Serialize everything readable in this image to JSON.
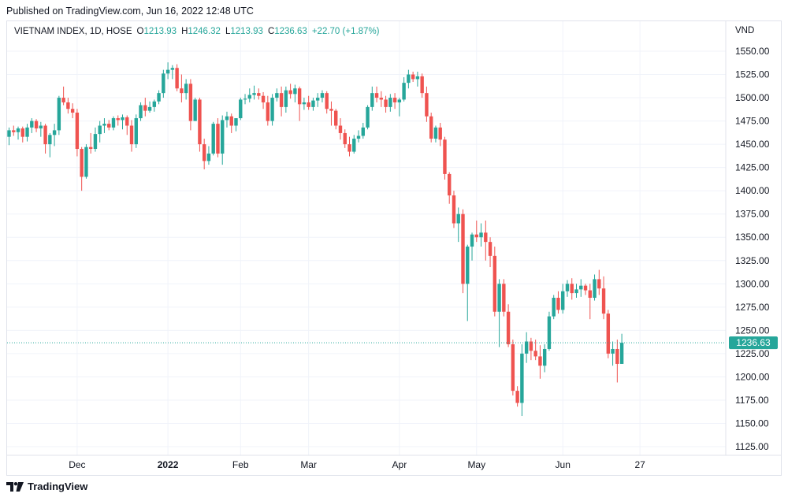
{
  "header": {
    "published": "Published on TradingView.com, Jun 16, 2022 12:48 UTC"
  },
  "legend": {
    "symbol": "VIETNAM INDEX, 1D, HOSE",
    "o_label": "O",
    "o_value": "1213.93",
    "h_label": "H",
    "h_value": "1246.32",
    "l_label": "L",
    "l_value": "1213.93",
    "c_label": "C",
    "c_value": "1236.63",
    "change": "+22.70 (+1.87%)"
  },
  "currency": "VND",
  "footer": {
    "logo_mark": "𝟭𝟳",
    "brand": "TradingView"
  },
  "colors": {
    "up": "#26a69a",
    "down": "#ef5350",
    "grid": "#f0f3fa",
    "price_line": "#26a69a"
  },
  "chart_data": {
    "type": "candlestick",
    "ylim": [
      1110,
      1575
    ],
    "y_ticks": [
      "1550.00",
      "1525.00",
      "1500.00",
      "1475.00",
      "1450.00",
      "1425.00",
      "1400.00",
      "1375.00",
      "1350.00",
      "1325.00",
      "1300.00",
      "1275.00",
      "1250.00",
      "1225.00",
      "1200.00",
      "1175.00",
      "1150.00",
      "1125.00"
    ],
    "x_labels": [
      {
        "label": "Dec",
        "bar": 15,
        "bold": false
      },
      {
        "label": "2022",
        "bar": 35,
        "bold": true
      },
      {
        "label": "Feb",
        "bar": 51,
        "bold": false
      },
      {
        "label": "Mar",
        "bar": 66,
        "bold": false
      },
      {
        "label": "Apr",
        "bar": 86,
        "bold": false
      },
      {
        "label": "May",
        "bar": 103,
        "bold": false
      },
      {
        "label": "Jun",
        "bar": 122,
        "bold": false
      },
      {
        "label": "27",
        "bar": 139,
        "bold": false
      }
    ],
    "last_price": 1236.63,
    "last_price_label": "1236.63",
    "candles": [
      [
        1458,
        1468,
        1449,
        1465
      ],
      [
        1465,
        1470,
        1459,
        1463
      ],
      [
        1463,
        1469,
        1455,
        1467
      ],
      [
        1467,
        1469,
        1452,
        1458
      ],
      [
        1458,
        1472,
        1453,
        1468
      ],
      [
        1468,
        1478,
        1462,
        1475
      ],
      [
        1475,
        1477,
        1463,
        1467
      ],
      [
        1467,
        1474,
        1458,
        1470
      ],
      [
        1470,
        1472,
        1440,
        1450
      ],
      [
        1450,
        1462,
        1436,
        1460
      ],
      [
        1460,
        1472,
        1448,
        1465
      ],
      [
        1465,
        1502,
        1460,
        1500
      ],
      [
        1500,
        1512,
        1492,
        1495
      ],
      [
        1495,
        1500,
        1483,
        1488
      ],
      [
        1488,
        1494,
        1478,
        1484
      ],
      [
        1484,
        1488,
        1437,
        1445
      ],
      [
        1445,
        1447,
        1400,
        1415
      ],
      [
        1415,
        1450,
        1413,
        1447
      ],
      [
        1447,
        1462,
        1440,
        1445
      ],
      [
        1445,
        1468,
        1442,
        1461
      ],
      [
        1461,
        1475,
        1452,
        1470
      ],
      [
        1470,
        1478,
        1462,
        1472
      ],
      [
        1472,
        1476,
        1465,
        1468
      ],
      [
        1468,
        1480,
        1465,
        1478
      ],
      [
        1478,
        1481,
        1470,
        1476
      ],
      [
        1476,
        1482,
        1466,
        1479
      ],
      [
        1479,
        1481,
        1460,
        1470
      ],
      [
        1470,
        1476,
        1442,
        1450
      ],
      [
        1450,
        1482,
        1446,
        1478
      ],
      [
        1478,
        1495,
        1475,
        1492
      ],
      [
        1492,
        1500,
        1480,
        1486
      ],
      [
        1486,
        1496,
        1484,
        1490
      ],
      [
        1490,
        1498,
        1485,
        1496
      ],
      [
        1496,
        1508,
        1493,
        1505
      ],
      [
        1505,
        1530,
        1500,
        1526
      ],
      [
        1526,
        1538,
        1520,
        1530
      ],
      [
        1530,
        1535,
        1520,
        1532
      ],
      [
        1532,
        1536,
        1507,
        1510
      ],
      [
        1510,
        1525,
        1495,
        1505
      ],
      [
        1505,
        1520,
        1498,
        1515
      ],
      [
        1515,
        1520,
        1465,
        1475
      ],
      [
        1475,
        1500,
        1475,
        1498
      ],
      [
        1498,
        1500,
        1442,
        1450
      ],
      [
        1450,
        1456,
        1423,
        1432
      ],
      [
        1432,
        1448,
        1428,
        1440
      ],
      [
        1440,
        1474,
        1438,
        1472
      ],
      [
        1472,
        1478,
        1436,
        1440
      ],
      [
        1440,
        1481,
        1428,
        1476
      ],
      [
        1476,
        1485,
        1468,
        1480
      ],
      [
        1480,
        1483,
        1462,
        1470
      ],
      [
        1470,
        1478,
        1464,
        1478
      ],
      [
        1478,
        1500,
        1476,
        1498
      ],
      [
        1498,
        1504,
        1493,
        1499
      ],
      [
        1499,
        1510,
        1495,
        1503
      ],
      [
        1503,
        1513,
        1498,
        1505
      ],
      [
        1505,
        1510,
        1498,
        1502
      ],
      [
        1502,
        1506,
        1488,
        1495
      ],
      [
        1495,
        1502,
        1470,
        1475
      ],
      [
        1475,
        1504,
        1470,
        1500
      ],
      [
        1500,
        1510,
        1496,
        1505
      ],
      [
        1505,
        1512,
        1480,
        1490
      ],
      [
        1490,
        1512,
        1484,
        1508
      ],
      [
        1508,
        1515,
        1499,
        1504
      ],
      [
        1504,
        1514,
        1495,
        1510
      ],
      [
        1510,
        1512,
        1475,
        1493
      ],
      [
        1493,
        1500,
        1487,
        1495
      ],
      [
        1495,
        1502,
        1487,
        1490
      ],
      [
        1490,
        1500,
        1486,
        1497
      ],
      [
        1497,
        1505,
        1490,
        1500
      ],
      [
        1500,
        1508,
        1495,
        1505
      ],
      [
        1505,
        1507,
        1483,
        1488
      ],
      [
        1488,
        1496,
        1470,
        1486
      ],
      [
        1486,
        1488,
        1466,
        1470
      ],
      [
        1470,
        1478,
        1455,
        1462
      ],
      [
        1462,
        1466,
        1446,
        1450
      ],
      [
        1450,
        1458,
        1437,
        1442
      ],
      [
        1442,
        1460,
        1440,
        1456
      ],
      [
        1456,
        1465,
        1452,
        1459
      ],
      [
        1459,
        1473,
        1456,
        1468
      ],
      [
        1468,
        1492,
        1466,
        1490
      ],
      [
        1490,
        1512,
        1486,
        1505
      ],
      [
        1505,
        1512,
        1495,
        1500
      ],
      [
        1500,
        1507,
        1490,
        1498
      ],
      [
        1498,
        1502,
        1484,
        1490
      ],
      [
        1490,
        1504,
        1485,
        1500
      ],
      [
        1500,
        1505,
        1488,
        1495
      ],
      [
        1495,
        1500,
        1480,
        1498
      ],
      [
        1498,
        1522,
        1496,
        1516
      ],
      [
        1516,
        1530,
        1510,
        1525
      ],
      [
        1525,
        1528,
        1517,
        1520
      ],
      [
        1520,
        1528,
        1512,
        1523
      ],
      [
        1523,
        1526,
        1500,
        1505
      ],
      [
        1505,
        1512,
        1474,
        1480
      ],
      [
        1480,
        1484,
        1452,
        1456
      ],
      [
        1456,
        1470,
        1452,
        1468
      ],
      [
        1468,
        1473,
        1448,
        1455
      ],
      [
        1455,
        1458,
        1412,
        1418
      ],
      [
        1418,
        1420,
        1386,
        1395
      ],
      [
        1395,
        1400,
        1360,
        1365
      ],
      [
        1365,
        1382,
        1345,
        1375
      ],
      [
        1375,
        1380,
        1290,
        1300
      ],
      [
        1300,
        1342,
        1260,
        1340
      ],
      [
        1340,
        1355,
        1325,
        1353
      ],
      [
        1353,
        1368,
        1345,
        1350
      ],
      [
        1350,
        1365,
        1340,
        1355
      ],
      [
        1355,
        1368,
        1325,
        1345
      ],
      [
        1345,
        1350,
        1318,
        1330
      ],
      [
        1330,
        1340,
        1265,
        1270
      ],
      [
        1270,
        1305,
        1232,
        1300
      ],
      [
        1300,
        1305,
        1265,
        1270
      ],
      [
        1270,
        1278,
        1232,
        1235
      ],
      [
        1235,
        1240,
        1180,
        1185
      ],
      [
        1185,
        1190,
        1168,
        1172
      ],
      [
        1172,
        1235,
        1158,
        1225
      ],
      [
        1225,
        1248,
        1215,
        1238
      ],
      [
        1238,
        1242,
        1218,
        1228
      ],
      [
        1228,
        1240,
        1218,
        1222
      ],
      [
        1222,
        1234,
        1198,
        1212
      ],
      [
        1212,
        1235,
        1205,
        1230
      ],
      [
        1230,
        1270,
        1228,
        1265
      ],
      [
        1265,
        1288,
        1262,
        1285
      ],
      [
        1285,
        1292,
        1268,
        1272
      ],
      [
        1272,
        1300,
        1268,
        1292
      ],
      [
        1292,
        1304,
        1286,
        1300
      ],
      [
        1300,
        1306,
        1283,
        1290
      ],
      [
        1290,
        1300,
        1285,
        1294
      ],
      [
        1294,
        1305,
        1286,
        1298
      ],
      [
        1298,
        1300,
        1288,
        1293
      ],
      [
        1293,
        1300,
        1262,
        1285
      ],
      [
        1285,
        1310,
        1282,
        1305
      ],
      [
        1305,
        1315,
        1288,
        1295
      ],
      [
        1295,
        1308,
        1262,
        1268
      ],
      [
        1268,
        1272,
        1220,
        1225
      ],
      [
        1225,
        1238,
        1212,
        1230
      ],
      [
        1230,
        1240,
        1194,
        1213.93
      ],
      [
        1213.93,
        1246.32,
        1213.93,
        1236.63
      ]
    ]
  }
}
